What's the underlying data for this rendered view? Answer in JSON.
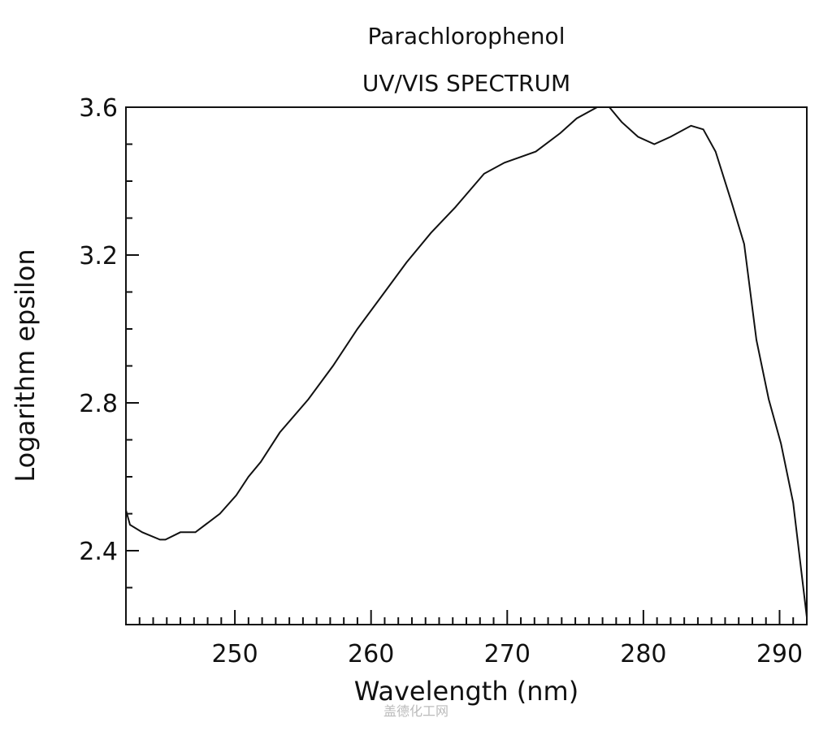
{
  "chart_data": {
    "type": "line",
    "title": "Parachlorophenol",
    "subtitle": "UV/VIS SPECTRUM",
    "xlabel": "Wavelength (nm)",
    "ylabel": "Logarithm epsilon",
    "xlim": [
      242,
      292
    ],
    "ylim": [
      2.2,
      3.6
    ],
    "xticks": [
      250,
      260,
      270,
      280,
      290
    ],
    "xtick_labels": [
      "250",
      "260",
      "270",
      "280",
      "290"
    ],
    "yticks": [
      2.4,
      2.8,
      3.2,
      3.6
    ],
    "ytick_labels": [
      "2.4",
      "2.8",
      "3.2",
      "3.6"
    ],
    "x_minor_step": 1,
    "y_minor_step": 0.1,
    "grid": false,
    "line_color": "#111111",
    "series": [
      {
        "x": [
          242.0,
          242.3,
          243.2,
          244.5,
          244.9,
          246.0,
          247.1,
          248.9,
          250.1,
          251.0,
          251.9,
          253.3,
          255.4,
          257.2,
          259.0,
          260.8,
          262.6,
          264.4,
          266.2,
          268.3,
          269.8,
          272.1,
          273.9,
          275.1,
          276.6,
          277.5,
          278.4,
          279.6,
          280.8,
          282.0,
          283.5,
          284.4,
          285.3,
          286.5,
          287.4,
          288.3,
          289.2,
          290.1,
          291.0,
          292.0
        ],
        "y": [
          2.51,
          2.47,
          2.45,
          2.43,
          2.43,
          2.45,
          2.45,
          2.5,
          2.55,
          2.6,
          2.64,
          2.72,
          2.81,
          2.9,
          3.0,
          3.09,
          3.18,
          3.26,
          3.33,
          3.42,
          3.45,
          3.48,
          3.53,
          3.57,
          3.6,
          3.6,
          3.56,
          3.52,
          3.5,
          3.52,
          3.55,
          3.54,
          3.48,
          3.34,
          3.23,
          2.97,
          2.81,
          2.69,
          2.53,
          2.22
        ]
      }
    ]
  },
  "watermark": "盖德化工网"
}
